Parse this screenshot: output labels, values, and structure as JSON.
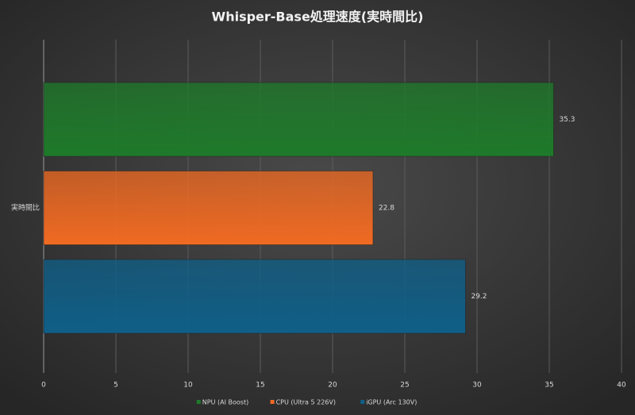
{
  "chart_data": {
    "type": "bar",
    "orientation": "horizontal",
    "title": "Whisper-Base処理速度(実時間比)",
    "categories": [
      "実時間比"
    ],
    "series": [
      {
        "name": "NPU (AI Boost)",
        "color": "#1e7a2a",
        "values": [
          35.3
        ]
      },
      {
        "name": "CPU (Ultra 5 226V)",
        "color": "#f06a22",
        "values": [
          22.8
        ]
      },
      {
        "name": "iGPU (Arc 130V)",
        "color": "#0f5f88",
        "values": [
          29.2
        ]
      }
    ],
    "xlim": [
      0,
      40
    ],
    "xticks": [
      0,
      5,
      10,
      15,
      20,
      25,
      30,
      35,
      40
    ],
    "grid": true,
    "legend": "bottom"
  }
}
